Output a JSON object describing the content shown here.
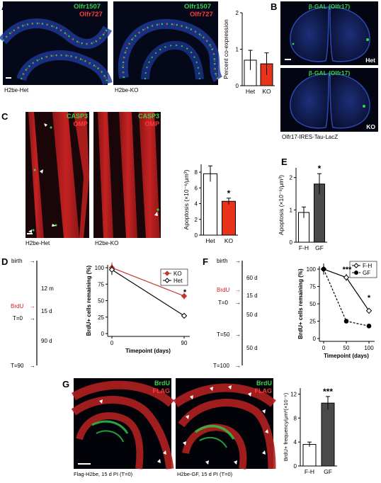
{
  "panels": {
    "A": {
      "letter": "A",
      "img1_caption": "H2be-Het",
      "img2_caption": "H2be-KO",
      "stain_green": "Olfr1507",
      "stain_red": "Olfr727",
      "chart": {
        "ylabel": "Percent co-expression",
        "ticks": [
          "0",
          "1",
          "2"
        ],
        "categories": [
          "Het",
          "KO"
        ]
      }
    },
    "B": {
      "letter": "B",
      "stain": "β-GAL (Olfr17)",
      "tag_top": "Het",
      "tag_bottom": "KO",
      "caption": "Olfr17-IRES-Tau-LacZ"
    },
    "C": {
      "letter": "C",
      "stain_green": "CASP3",
      "stain_red": "OMP",
      "img1_caption": "H2be-Het",
      "img2_caption": "H2be-KO",
      "chart": {
        "ylabel": "Apoptosis (×10⁻⁶/μm³)",
        "ticks": [
          "0",
          "2",
          "4",
          "6",
          "8"
        ],
        "categories": [
          "Het",
          "KO"
        ],
        "star": "*"
      }
    },
    "D": {
      "letter": "D",
      "timeline": [
        "birth",
        "12 m",
        "BrdU",
        "15 d",
        "T=0",
        "90 d",
        "T=90"
      ],
      "chart": {
        "ylabel": "BrdU+ cells remaining (%)",
        "xlabel": "Timepoint (days)",
        "yticks": [
          "0",
          "25",
          "50",
          "75",
          "100"
        ],
        "xticks": [
          "0",
          "90"
        ],
        "legend": [
          "KO",
          "Het"
        ],
        "star": "*"
      }
    },
    "E": {
      "letter": "E",
      "chart": {
        "ylabel": "Apoptosis (×10⁻⁶/μm³)",
        "ticks": [
          "0",
          "1",
          "2"
        ],
        "categories": [
          "F-H",
          "GF"
        ],
        "star": "*"
      }
    },
    "F": {
      "letter": "F",
      "timeline": [
        "birth",
        "60 d",
        "BrdU",
        "15 d",
        "T=0",
        "50 d",
        "T=50",
        "50 d",
        "T=100"
      ],
      "chart": {
        "ylabel": "BrdU+ cells remaining (%)",
        "xlabel": "Timepoint (days)",
        "yticks": [
          "0",
          "25",
          "50",
          "75",
          "100"
        ],
        "xticks": [
          "0",
          "50",
          "100"
        ],
        "legend": [
          "F-H",
          "GF"
        ],
        "stars": [
          "***",
          "*"
        ]
      }
    },
    "G": {
      "letter": "G",
      "stain_green": "BrdU",
      "stain_red": "FLAG",
      "img1_caption": "Flag-H2be, 15 d PI (T=0)",
      "img2_caption": "H2be-GF, 15 d PI (T=0)",
      "chart": {
        "ylabel": "BrdU+ frequency/μm³(×10⁻⁶)",
        "ticks": [
          "0",
          "4",
          "8",
          "12"
        ],
        "categories": [
          "F-H",
          "GF"
        ],
        "star": "***"
      }
    }
  },
  "chart_data": [
    {
      "panel": "A",
      "type": "bar",
      "categories": [
        "Het",
        "KO"
      ],
      "values": [
        0.7,
        0.6
      ],
      "errors": [
        0.27,
        0.3
      ],
      "colors": [
        "#ffffff",
        "#e8331b"
      ],
      "ylabel": "Percent co-expression",
      "ylim": [
        0,
        2
      ]
    },
    {
      "panel": "C",
      "type": "bar",
      "categories": [
        "Het",
        "KO"
      ],
      "values": [
        7.8,
        4.3
      ],
      "errors": [
        1.0,
        0.4
      ],
      "colors": [
        "#ffffff",
        "#e8331b"
      ],
      "ylabel": "Apoptosis (×10⁻⁶/μm³)",
      "ylim": [
        0,
        9
      ]
    },
    {
      "panel": "D",
      "type": "line",
      "x": [
        0,
        90
      ],
      "series": [
        {
          "name": "KO",
          "values": [
            100,
            57
          ],
          "errors": [
            8,
            5
          ],
          "color": "#c0392b"
        },
        {
          "name": "Het",
          "values": [
            97,
            27
          ],
          "errors": [
            8,
            1
          ],
          "color": "#000000"
        }
      ],
      "xlabel": "Timepoint (days)",
      "ylabel": "BrdU+ cells remaining (%)",
      "xlim": [
        0,
        90
      ],
      "ylim": [
        0,
        100
      ]
    },
    {
      "panel": "E",
      "type": "bar",
      "categories": [
        "F-H",
        "GF"
      ],
      "values": [
        0.92,
        1.8
      ],
      "errors": [
        0.17,
        0.32
      ],
      "colors": [
        "#ffffff",
        "#4a4a4a"
      ],
      "ylabel": "Apoptosis (×10⁻⁶/μm³)",
      "ylim": [
        0,
        2.3
      ]
    },
    {
      "panel": "F",
      "type": "line",
      "x": [
        0,
        50,
        100
      ],
      "series": [
        {
          "name": "F-H",
          "values": [
            100,
            88,
            40
          ],
          "errors": [
            5,
            5,
            4
          ],
          "color": "#000000"
        },
        {
          "name": "GF",
          "values": [
            100,
            25,
            18
          ],
          "errors": [
            8,
            1,
            1
          ],
          "color": "#000000"
        }
      ],
      "xlabel": "Timepoint (days)",
      "ylabel": "BrdU+ cells remaining (%)",
      "xlim": [
        0,
        100
      ],
      "ylim": [
        0,
        100
      ]
    },
    {
      "panel": "G",
      "type": "bar",
      "categories": [
        "F-H",
        "GF"
      ],
      "values": [
        3.6,
        10.5
      ],
      "errors": [
        0.4,
        1.1
      ],
      "colors": [
        "#ffffff",
        "#4a4a4a"
      ],
      "ylabel": "BrdU+ frequency/μm³(×10⁻⁶)",
      "ylim": [
        0,
        13
      ]
    }
  ]
}
